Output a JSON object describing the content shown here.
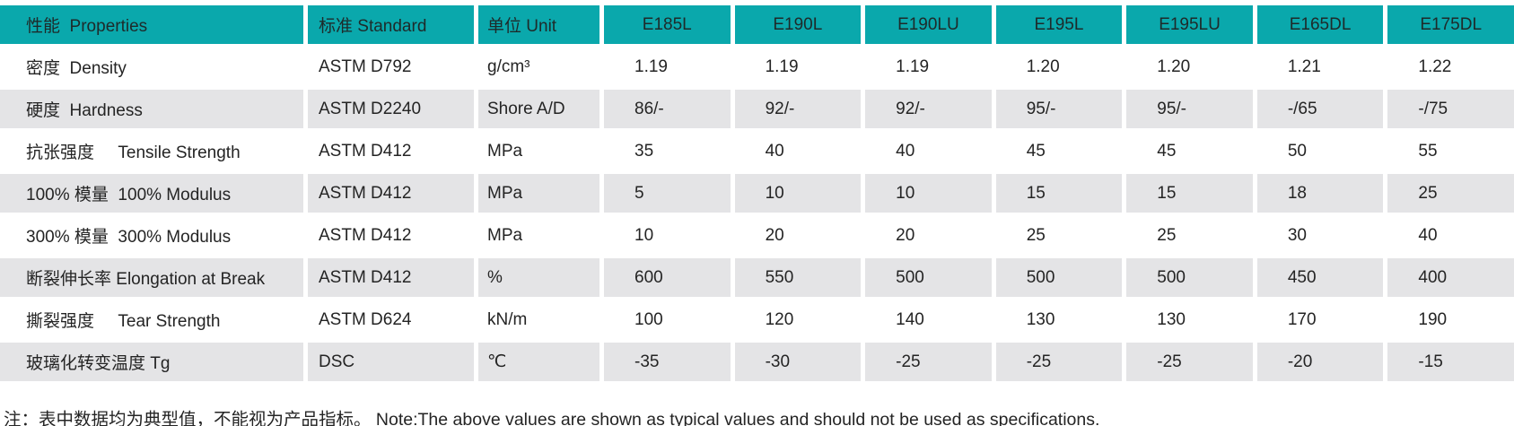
{
  "colors": {
    "teal": "#0aa8ac",
    "row_gray": "#e4e4e6",
    "text": "#242424",
    "header_text": "#1e2a2a"
  },
  "table": {
    "columns": [
      {
        "key": "properties",
        "label": "性能  Properties"
      },
      {
        "key": "standard",
        "label": "标准 Standard"
      },
      {
        "key": "unit",
        "label": "单位 Unit"
      },
      {
        "key": "E185L",
        "label": "E185L"
      },
      {
        "key": "E190L",
        "label": "E190L"
      },
      {
        "key": "E190LU",
        "label": "E190LU"
      },
      {
        "key": "E195L",
        "label": "E195L"
      },
      {
        "key": "E195LU",
        "label": "E195LU"
      },
      {
        "key": "E165DL",
        "label": "E165DL"
      },
      {
        "key": "E175DL",
        "label": "E175DL"
      }
    ],
    "rows": [
      {
        "property": "密度  Density",
        "standard": "ASTM D792",
        "unit": "g/cm³",
        "values": [
          "1.19",
          "1.19",
          "1.19",
          "1.20",
          "1.20",
          "1.21",
          "1.22"
        ]
      },
      {
        "property": "硬度  Hardness",
        "standard": "ASTM D2240",
        "unit": "Shore A/D",
        "values": [
          "86/-",
          "92/-",
          "92/-",
          "95/-",
          "95/-",
          "-/65",
          "-/75"
        ]
      },
      {
        "property": "抗张强度     Tensile Strength",
        "standard": "ASTM D412",
        "unit": "MPa",
        "values": [
          "35",
          "40",
          "40",
          "45",
          "45",
          "50",
          "55"
        ]
      },
      {
        "property": "100% 模量  100% Modulus",
        "standard": "ASTM D412",
        "unit": "MPa",
        "values": [
          "5",
          "10",
          "10",
          "15",
          "15",
          "18",
          "25"
        ]
      },
      {
        "property": "300% 模量  300% Modulus",
        "standard": "ASTM D412",
        "unit": "MPa",
        "values": [
          "10",
          "20",
          "20",
          "25",
          "25",
          "30",
          "40"
        ]
      },
      {
        "property": "断裂伸长率 Elongation at Break",
        "standard": "ASTM D412",
        "unit": "%",
        "values": [
          "600",
          "550",
          "500",
          "500",
          "500",
          "450",
          "400"
        ]
      },
      {
        "property": "撕裂强度     Tear Strength",
        "standard": "ASTM D624",
        "unit": "kN/m",
        "values": [
          "100",
          "120",
          "140",
          "130",
          "130",
          "170",
          "190"
        ]
      },
      {
        "property": "玻璃化转变温度 Tg",
        "standard": "DSC",
        "unit": "℃",
        "values": [
          "-35",
          "-30",
          "-25",
          "-25",
          "-25",
          "-20",
          "-15"
        ]
      }
    ]
  },
  "note": "注：表中数据均为典型值，不能视为产品指标。 Note:The above values are shown as typical values and should not be used as specifications."
}
